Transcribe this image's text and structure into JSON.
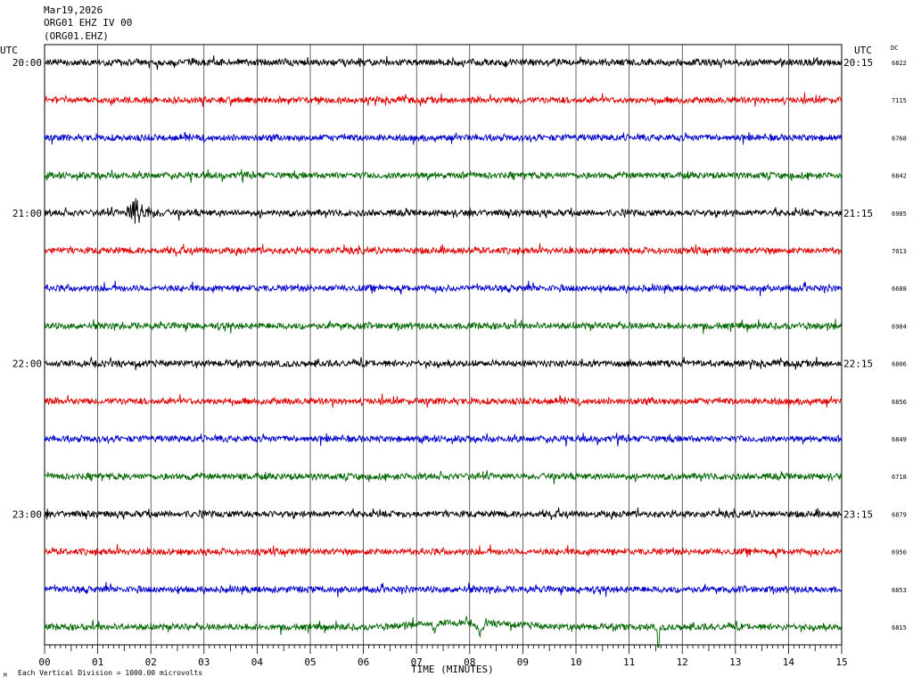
{
  "header": {
    "date": "Mar19,2026",
    "station": "ORG01 EHZ IV 00",
    "code": "(ORG01.EHZ)"
  },
  "labels": {
    "utc_left": "UTC",
    "utc_right": "UTC",
    "dc": "DC",
    "footer": "Each Vertical Division = 1000.00 microvolts",
    "footer_mark": "M"
  },
  "colors": [
    "#000000",
    "#dd0000",
    "#0000cc",
    "#006600"
  ],
  "chart_data": {
    "type": "line",
    "xlabel": "TIME (MINUTES)",
    "xlim": [
      0,
      15
    ],
    "x_ticks": [
      "00",
      "01",
      "02",
      "03",
      "04",
      "05",
      "06",
      "07",
      "08",
      "09",
      "10",
      "11",
      "12",
      "13",
      "14",
      "15"
    ],
    "left_times": [
      "20:00",
      "21:00",
      "22:00",
      "23:00"
    ],
    "right_times": [
      "20:15",
      "21:15",
      "22:15",
      "23:15"
    ],
    "dc_values": [
      "6822",
      "7115",
      "6768",
      "6842",
      "6985",
      "7013",
      "6688",
      "6984",
      "6806",
      "6856",
      "6849",
      "6718",
      "6879",
      "6950",
      "6853",
      "6815"
    ],
    "events": [
      {
        "trace": 4,
        "minute": 1.65,
        "description": "local event burst"
      },
      {
        "trace": 15,
        "minute": 7.4,
        "description": "long-period disturbance"
      },
      {
        "trace": 15,
        "minute": 11.55,
        "description": "spike"
      }
    ]
  }
}
